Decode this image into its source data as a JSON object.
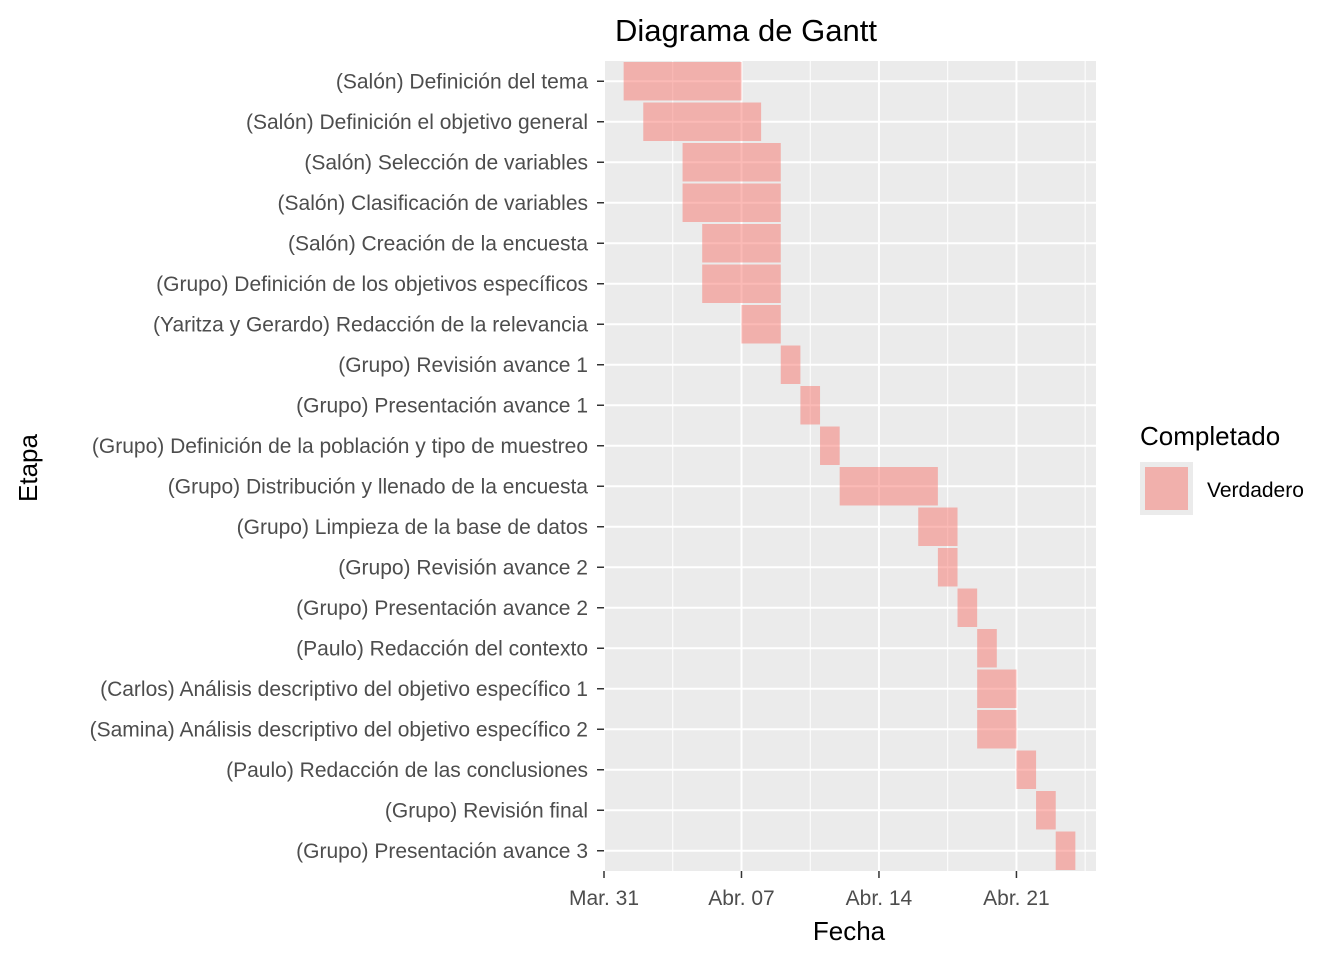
{
  "chart_data": {
    "type": "bar",
    "subtype": "gantt",
    "title": "Diagrama de Gantt",
    "xlabel": "Fecha",
    "ylabel": "Etapa",
    "x_ticks": [
      "Mar. 31",
      "Abr. 07",
      "Abr. 14",
      "Abr. 21"
    ],
    "x_tick_dates": [
      "2023-03-31",
      "2023-04-07",
      "2023-04-14",
      "2023-04-21"
    ],
    "xlim": [
      "2023-03-30",
      "2023-04-25"
    ],
    "grid": true,
    "legend": {
      "title": "Completado",
      "position": "right",
      "items": [
        {
          "label": "Verdadero",
          "color": "#F8766D"
        }
      ]
    },
    "bar_color": "#F8766D",
    "bar_opacity": 0.5,
    "tasks": [
      {
        "label": "(Salón) Definición del tema",
        "start": "2023-04-01",
        "end": "2023-04-07"
      },
      {
        "label": "(Salón) Definición el objetivo general",
        "start": "2023-04-02",
        "end": "2023-04-08"
      },
      {
        "label": "(Salón) Selección de variables",
        "start": "2023-04-04",
        "end": "2023-04-09"
      },
      {
        "label": "(Salón) Clasificación de variables",
        "start": "2023-04-04",
        "end": "2023-04-09"
      },
      {
        "label": "(Salón) Creación de la encuesta",
        "start": "2023-04-05",
        "end": "2023-04-09"
      },
      {
        "label": "(Grupo) Definición de los objetivos específicos",
        "start": "2023-04-05",
        "end": "2023-04-09"
      },
      {
        "label": "(Yaritza y Gerardo) Redacción de la relevancia",
        "start": "2023-04-07",
        "end": "2023-04-09"
      },
      {
        "label": "(Grupo) Revisión avance 1",
        "start": "2023-04-09",
        "end": "2023-04-10"
      },
      {
        "label": "(Grupo) Presentación avance 1",
        "start": "2023-04-10",
        "end": "2023-04-11"
      },
      {
        "label": "(Grupo) Definición de la población y tipo de muestreo",
        "start": "2023-04-11",
        "end": "2023-04-12"
      },
      {
        "label": "(Grupo) Distribución y llenado de la encuesta",
        "start": "2023-04-12",
        "end": "2023-04-17"
      },
      {
        "label": "(Grupo) Limpieza de la base de datos",
        "start": "2023-04-16",
        "end": "2023-04-18"
      },
      {
        "label": "(Grupo) Revisión avance 2",
        "start": "2023-04-17",
        "end": "2023-04-18"
      },
      {
        "label": "(Grupo) Presentación avance 2",
        "start": "2023-04-18",
        "end": "2023-04-19"
      },
      {
        "label": "(Paulo) Redacción del contexto",
        "start": "2023-04-19",
        "end": "2023-04-20"
      },
      {
        "label": "(Carlos) Análisis descriptivo del objetivo específico 1",
        "start": "2023-04-19",
        "end": "2023-04-21"
      },
      {
        "label": "(Samina) Análisis descriptivo del objetivo específico 2",
        "start": "2023-04-19",
        "end": "2023-04-21"
      },
      {
        "label": "(Paulo) Redacción de las conclusiones",
        "start": "2023-04-21",
        "end": "2023-04-22"
      },
      {
        "label": "(Grupo) Revisión final",
        "start": "2023-04-22",
        "end": "2023-04-23"
      },
      {
        "label": "(Grupo) Presentación avance 3",
        "start": "2023-04-23",
        "end": "2023-04-24"
      }
    ]
  }
}
